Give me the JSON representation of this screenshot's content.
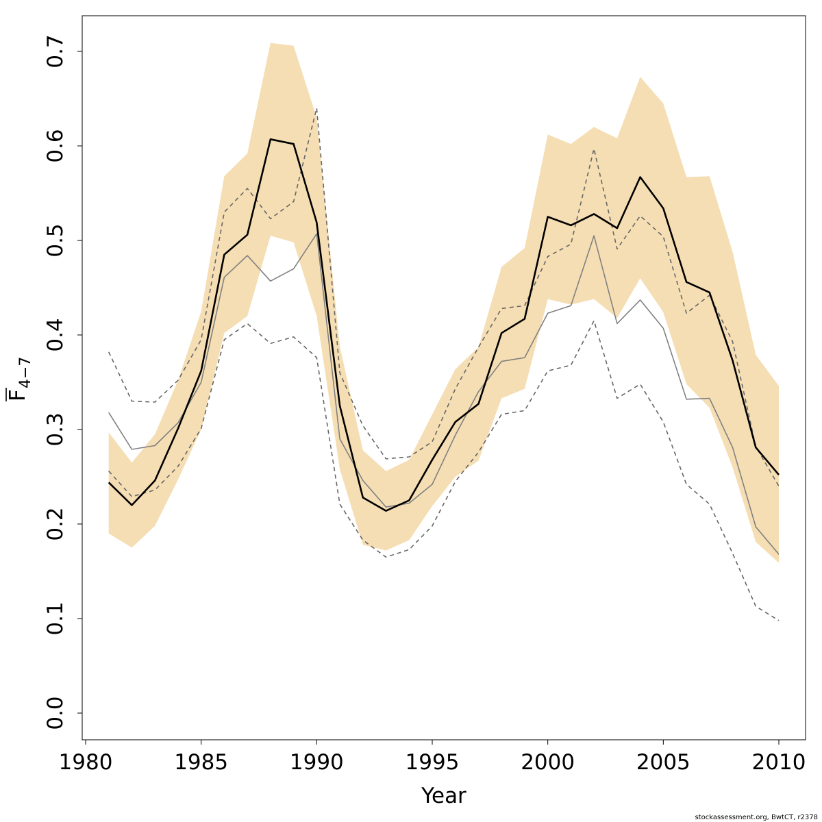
{
  "chart_data": {
    "type": "line",
    "xlabel": "Year",
    "ylabel_main": "F",
    "ylabel_sub": "4−7",
    "xlim": [
      1980,
      2010
    ],
    "ylim": [
      0,
      0.7
    ],
    "xticks": [
      1980,
      1985,
      1990,
      1995,
      2000,
      2005,
      2010
    ],
    "yticks": [
      0.0,
      0.1,
      0.2,
      0.3,
      0.4,
      0.5,
      0.6,
      0.7
    ],
    "ytick_labels": [
      "0.0",
      "0.1",
      "0.2",
      "0.3",
      "0.4",
      "0.5",
      "0.6",
      "0.7"
    ],
    "grid": false,
    "legend": "none",
    "x": [
      1981,
      1982,
      1983,
      1984,
      1985,
      1986,
      1987,
      1988,
      1989,
      1990,
      1991,
      1992,
      1993,
      1994,
      1995,
      1996,
      1997,
      1998,
      1999,
      2000,
      2001,
      2002,
      2003,
      2004,
      2005,
      2006,
      2007,
      2008,
      2009,
      2010
    ],
    "band": {
      "color": "#f5deb3",
      "lower": [
        0.19,
        0.175,
        0.198,
        0.247,
        0.3,
        0.402,
        0.42,
        0.505,
        0.498,
        0.42,
        0.258,
        0.178,
        0.172,
        0.183,
        0.219,
        0.25,
        0.267,
        0.333,
        0.343,
        0.438,
        0.432,
        0.438,
        0.418,
        0.46,
        0.424,
        0.348,
        0.323,
        0.26,
        0.181,
        0.159
      ],
      "upper": [
        0.297,
        0.265,
        0.295,
        0.352,
        0.425,
        0.568,
        0.592,
        0.709,
        0.706,
        0.63,
        0.388,
        0.278,
        0.256,
        0.268,
        0.316,
        0.364,
        0.387,
        0.472,
        0.492,
        0.612,
        0.602,
        0.62,
        0.608,
        0.673,
        0.645,
        0.567,
        0.568,
        0.488,
        0.379,
        0.346
      ]
    },
    "series": [
      {
        "color": "#000000",
        "style": "solid",
        "values": [
          0.244,
          0.22,
          0.246,
          0.301,
          0.362,
          0.485,
          0.506,
          0.607,
          0.602,
          0.519,
          0.325,
          0.228,
          0.214,
          0.225,
          0.268,
          0.308,
          0.327,
          0.402,
          0.417,
          0.525,
          0.516,
          0.528,
          0.513,
          0.567,
          0.534,
          0.456,
          0.445,
          0.373,
          0.281,
          0.252
        ]
      },
      {
        "color": "#808080",
        "style": "solid",
        "values": [
          0.318,
          0.279,
          0.283,
          0.307,
          0.35,
          0.461,
          0.484,
          0.457,
          0.47,
          0.507,
          0.29,
          0.246,
          0.218,
          0.222,
          0.242,
          0.294,
          0.34,
          0.372,
          0.376,
          0.423,
          0.431,
          0.505,
          0.412,
          0.437,
          0.407,
          0.332,
          0.333,
          0.281,
          0.197,
          0.168
        ]
      },
      {
        "color": "#666666",
        "style": "dashed",
        "values": [
          0.382,
          0.33,
          0.329,
          0.352,
          0.395,
          0.53,
          0.555,
          0.523,
          0.541,
          0.64,
          0.36,
          0.304,
          0.269,
          0.271,
          0.287,
          0.343,
          0.387,
          0.428,
          0.431,
          0.483,
          0.496,
          0.597,
          0.491,
          0.526,
          0.504,
          0.423,
          0.442,
          0.393,
          0.282,
          0.24
        ]
      },
      {
        "color": "#666666",
        "style": "dashed",
        "values": [
          0.256,
          0.229,
          0.236,
          0.261,
          0.301,
          0.395,
          0.412,
          0.391,
          0.398,
          0.376,
          0.221,
          0.183,
          0.165,
          0.173,
          0.198,
          0.245,
          0.276,
          0.316,
          0.32,
          0.362,
          0.368,
          0.415,
          0.333,
          0.348,
          0.308,
          0.242,
          0.221,
          0.169,
          0.113,
          0.098
        ]
      }
    ]
  },
  "footer": "stockassessment.org, BwtCT, r2378"
}
